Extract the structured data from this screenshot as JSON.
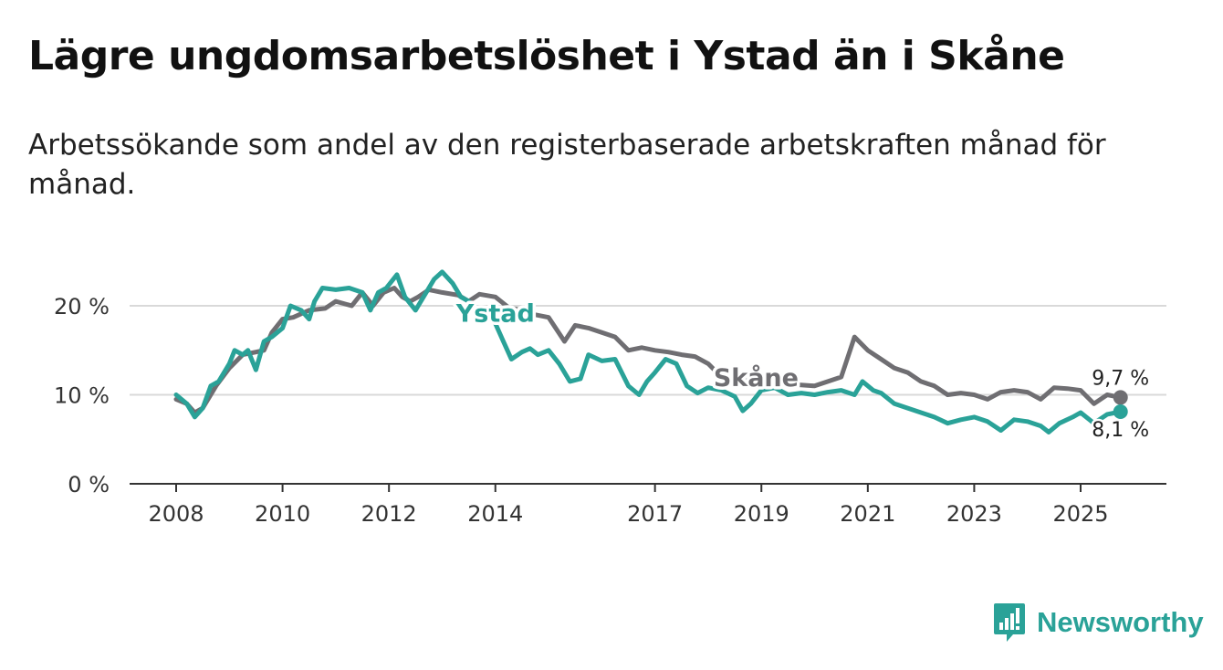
{
  "title": "Lägre ungdomsarbetslöshet i Ystad än i Skåne",
  "subtitle": "Arbetssökande som andel av den registerbaserade arbetskraften månad för månad.",
  "brand": {
    "name": "Newsworthy",
    "icon": "newsworthy-logo-icon",
    "color": "#2aa298"
  },
  "chart_data": {
    "type": "line",
    "title": "Lägre ungdomsarbetslöshet i Ystad än i Skåne",
    "subtitle": "Arbetssökande som andel av den registerbaserade arbetskraften månad för månad.",
    "xlabel": "",
    "ylabel": "",
    "xlim": [
      2008.0,
      2026.5
    ],
    "ylim": [
      0,
      25
    ],
    "grid": true,
    "x_ticks": [
      2008,
      2010,
      2012,
      2014,
      2017,
      2019,
      2021,
      2023,
      2025
    ],
    "x_tick_labels": [
      "2008",
      "2010",
      "2012",
      "2014",
      "2017",
      "2019",
      "2021",
      "2023",
      "2025"
    ],
    "y_ticks": [
      0,
      10,
      20
    ],
    "y_tick_labels": [
      "0 %",
      "10 %",
      "20 %"
    ],
    "series": [
      {
        "name": "Skåne",
        "color": "#6f6e72",
        "label": "Skåne",
        "label_at": [
          2018.9,
          11.0
        ],
        "end_value_label": "9,7 %",
        "points": [
          [
            2008.0,
            9.5
          ],
          [
            2008.2,
            9.0
          ],
          [
            2008.35,
            8.0
          ],
          [
            2008.5,
            8.5
          ],
          [
            2008.75,
            11.0
          ],
          [
            2009.0,
            13.0
          ],
          [
            2009.25,
            14.5
          ],
          [
            2009.5,
            14.8
          ],
          [
            2009.65,
            15.0
          ],
          [
            2009.8,
            17.0
          ],
          [
            2010.0,
            18.5
          ],
          [
            2010.2,
            18.7
          ],
          [
            2010.5,
            19.5
          ],
          [
            2010.8,
            19.7
          ],
          [
            2011.0,
            20.5
          ],
          [
            2011.3,
            20.0
          ],
          [
            2011.5,
            21.5
          ],
          [
            2011.7,
            20.0
          ],
          [
            2011.9,
            21.5
          ],
          [
            2012.1,
            22.0
          ],
          [
            2012.25,
            21.0
          ],
          [
            2012.4,
            20.5
          ],
          [
            2012.55,
            21.0
          ],
          [
            2012.75,
            21.8
          ],
          [
            2013.0,
            21.5
          ],
          [
            2013.3,
            21.2
          ],
          [
            2013.5,
            20.5
          ],
          [
            2013.7,
            21.3
          ],
          [
            2014.0,
            21.0
          ],
          [
            2014.25,
            19.8
          ],
          [
            2014.5,
            19.5
          ],
          [
            2014.75,
            19.0
          ],
          [
            2015.0,
            18.7
          ],
          [
            2015.3,
            16.0
          ],
          [
            2015.5,
            17.8
          ],
          [
            2015.75,
            17.5
          ],
          [
            2016.0,
            17.0
          ],
          [
            2016.25,
            16.5
          ],
          [
            2016.5,
            15.0
          ],
          [
            2016.75,
            15.3
          ],
          [
            2017.0,
            15.0
          ],
          [
            2017.25,
            14.8
          ],
          [
            2017.5,
            14.5
          ],
          [
            2017.75,
            14.3
          ],
          [
            2018.0,
            13.5
          ],
          [
            2018.25,
            12.0
          ],
          [
            2018.5,
            12.5
          ],
          [
            2018.75,
            11.8
          ],
          [
            2019.0,
            11.5
          ],
          [
            2019.5,
            11.2
          ],
          [
            2020.0,
            11.0
          ],
          [
            2020.5,
            12.0
          ],
          [
            2020.75,
            16.5
          ],
          [
            2021.0,
            15.0
          ],
          [
            2021.25,
            14.0
          ],
          [
            2021.5,
            13.0
          ],
          [
            2021.75,
            12.5
          ],
          [
            2022.0,
            11.5
          ],
          [
            2022.25,
            11.0
          ],
          [
            2022.5,
            10.0
          ],
          [
            2022.75,
            10.2
          ],
          [
            2023.0,
            10.0
          ],
          [
            2023.25,
            9.5
          ],
          [
            2023.5,
            10.3
          ],
          [
            2023.75,
            10.5
          ],
          [
            2024.0,
            10.3
          ],
          [
            2024.25,
            9.5
          ],
          [
            2024.5,
            10.8
          ],
          [
            2024.75,
            10.7
          ],
          [
            2025.0,
            10.5
          ],
          [
            2025.25,
            9.0
          ],
          [
            2025.5,
            10.0
          ],
          [
            2025.75,
            9.7
          ]
        ]
      },
      {
        "name": "Ystad",
        "color": "#2aa298",
        "label": "Ystad",
        "label_at": [
          2014.0,
          18.2
        ],
        "end_value_label": "8,1 %",
        "points": [
          [
            2008.0,
            10.0
          ],
          [
            2008.2,
            9.0
          ],
          [
            2008.35,
            7.5
          ],
          [
            2008.5,
            8.5
          ],
          [
            2008.65,
            11.0
          ],
          [
            2008.8,
            11.5
          ],
          [
            2009.0,
            13.5
          ],
          [
            2009.1,
            15.0
          ],
          [
            2009.25,
            14.5
          ],
          [
            2009.35,
            15.0
          ],
          [
            2009.5,
            12.8
          ],
          [
            2009.65,
            16.0
          ],
          [
            2009.8,
            16.5
          ],
          [
            2010.0,
            17.5
          ],
          [
            2010.15,
            20.0
          ],
          [
            2010.35,
            19.5
          ],
          [
            2010.5,
            18.5
          ],
          [
            2010.6,
            20.5
          ],
          [
            2010.75,
            22.0
          ],
          [
            2011.0,
            21.8
          ],
          [
            2011.25,
            22.0
          ],
          [
            2011.5,
            21.5
          ],
          [
            2011.65,
            19.5
          ],
          [
            2011.8,
            21.5
          ],
          [
            2011.95,
            22.0
          ],
          [
            2012.15,
            23.5
          ],
          [
            2012.3,
            21.0
          ],
          [
            2012.5,
            19.5
          ],
          [
            2012.7,
            21.5
          ],
          [
            2012.85,
            23.0
          ],
          [
            2013.0,
            23.8
          ],
          [
            2013.2,
            22.5
          ],
          [
            2013.35,
            21.0
          ],
          [
            2013.5,
            20.5
          ],
          [
            2014.0,
            18.0
          ],
          [
            2014.15,
            16.0
          ],
          [
            2014.3,
            14.0
          ],
          [
            2014.5,
            14.8
          ],
          [
            2014.65,
            15.2
          ],
          [
            2014.8,
            14.5
          ],
          [
            2015.0,
            15.0
          ],
          [
            2015.2,
            13.5
          ],
          [
            2015.4,
            11.5
          ],
          [
            2015.6,
            11.8
          ],
          [
            2015.75,
            14.5
          ],
          [
            2016.0,
            13.8
          ],
          [
            2016.25,
            14.0
          ],
          [
            2016.5,
            11.0
          ],
          [
            2016.7,
            10.0
          ],
          [
            2016.85,
            11.5
          ],
          [
            2017.0,
            12.5
          ],
          [
            2017.2,
            14.0
          ],
          [
            2017.4,
            13.5
          ],
          [
            2017.6,
            11.0
          ],
          [
            2017.8,
            10.2
          ],
          [
            2018.0,
            10.8
          ],
          [
            2018.25,
            10.5
          ],
          [
            2018.5,
            9.8
          ],
          [
            2018.65,
            8.2
          ],
          [
            2018.8,
            9.0
          ],
          [
            2019.0,
            10.5
          ],
          [
            2019.25,
            10.8
          ],
          [
            2019.5,
            10.0
          ],
          [
            2019.75,
            10.2
          ],
          [
            2020.0,
            10.0
          ],
          [
            2020.25,
            10.3
          ],
          [
            2020.5,
            10.5
          ],
          [
            2020.75,
            10.0
          ],
          [
            2020.9,
            11.5
          ],
          [
            2021.1,
            10.5
          ],
          [
            2021.25,
            10.2
          ],
          [
            2021.5,
            9.0
          ],
          [
            2021.75,
            8.5
          ],
          [
            2022.0,
            8.0
          ],
          [
            2022.25,
            7.5
          ],
          [
            2022.5,
            6.8
          ],
          [
            2022.75,
            7.2
          ],
          [
            2023.0,
            7.5
          ],
          [
            2023.25,
            7.0
          ],
          [
            2023.5,
            6.0
          ],
          [
            2023.75,
            7.2
          ],
          [
            2024.0,
            7.0
          ],
          [
            2024.25,
            6.5
          ],
          [
            2024.4,
            5.8
          ],
          [
            2024.6,
            6.8
          ],
          [
            2024.85,
            7.5
          ],
          [
            2025.0,
            8.0
          ],
          [
            2025.25,
            6.8
          ],
          [
            2025.5,
            7.8
          ],
          [
            2025.75,
            8.1
          ]
        ]
      }
    ]
  }
}
